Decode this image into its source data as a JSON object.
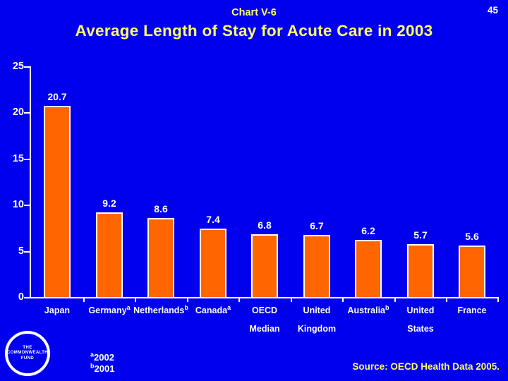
{
  "slide": {
    "page_number": "45",
    "kicker": "Chart V-6",
    "title": "Average Length of Stay for Acute Care in 2003",
    "source": "Source: OECD Health Data 2005.",
    "footnotes": [
      {
        "sup": "a",
        "text": "2002"
      },
      {
        "sup": "b",
        "text": "2001"
      }
    ],
    "logo": {
      "line1": "THE",
      "line2": "COMMONWEALTH",
      "line3": "FUND"
    }
  },
  "chart_data": {
    "type": "bar",
    "title": "Average Length of Stay for Acute Care in 2003",
    "categories": [
      "Japan",
      "Germany",
      "Netherlands",
      "Canada",
      "OECD Median",
      "United Kingdom",
      "Australia",
      "United States",
      "France"
    ],
    "category_superscripts": [
      "",
      "a",
      "b",
      "a",
      "",
      "",
      "b",
      "",
      ""
    ],
    "values": [
      20.7,
      9.2,
      8.6,
      7.4,
      6.8,
      6.7,
      6.2,
      5.7,
      5.6
    ],
    "value_labels": [
      "20.7",
      "9.2",
      "8.6",
      "7.4",
      "6.8",
      "6.7",
      "6.2",
      "5.7",
      "5.6"
    ],
    "xlabel": "",
    "ylabel": "",
    "ylim": [
      0,
      25
    ],
    "yticks": [
      0,
      5,
      10,
      15,
      20,
      25
    ],
    "grid": false,
    "legend": false,
    "footnote_key": {
      "a": "2002",
      "b": "2001"
    }
  },
  "colors": {
    "background": "#0000EE",
    "bar": "#FF6600",
    "bar_border": "#FFFFFF",
    "axis": "#FFFFFF",
    "title_text": "#FFFF66",
    "body_text": "#FFFFFF"
  }
}
